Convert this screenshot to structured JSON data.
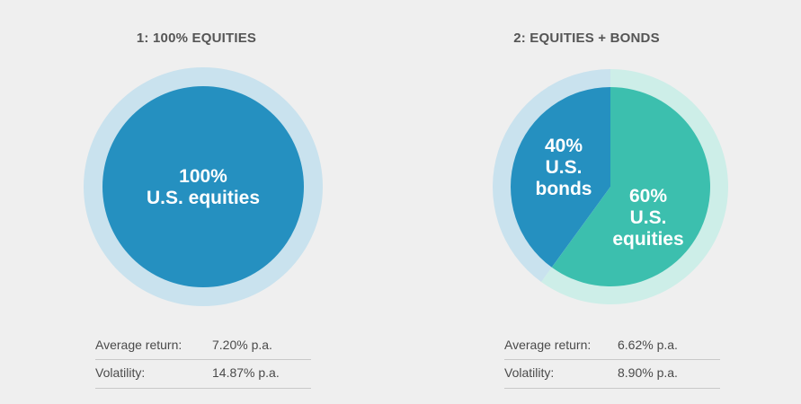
{
  "chart_data": [
    {
      "type": "pie",
      "title": "1: 100% EQUITIES",
      "slices": [
        {
          "label": "100%\nU.S. equities",
          "value": 100,
          "color": "#2590c0"
        }
      ],
      "ring_color": "#c9e2ee",
      "stats": [
        {
          "label": "Average return:",
          "value": "7.20% p.a."
        },
        {
          "label": "Volatility:",
          "value": "14.87% p.a."
        }
      ]
    },
    {
      "type": "pie",
      "title": "2: EQUITIES + BONDS",
      "slices": [
        {
          "label": "40%\nU.S.\nbonds",
          "value": 40,
          "color": "#2590c0",
          "ring_color": "#c9e2ee"
        },
        {
          "label": "60%\nU.S.\nequities",
          "value": 60,
          "color": "#3cbfae",
          "ring_color": "#cdeee8"
        }
      ],
      "stats": [
        {
          "label": "Average return:",
          "value": "6.62% p.a."
        },
        {
          "label": "Volatility:",
          "value": "8.90% p.a."
        }
      ]
    }
  ]
}
